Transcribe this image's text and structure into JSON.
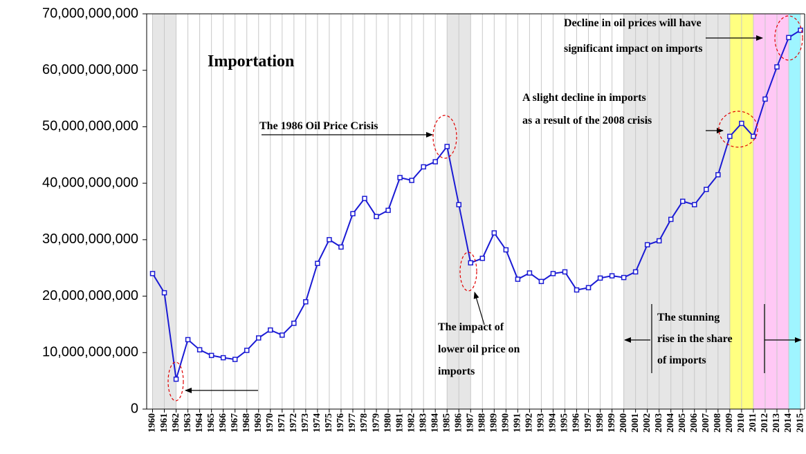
{
  "chart_data": {
    "type": "line",
    "title": "Importation",
    "x": [
      1960,
      1961,
      1962,
      1963,
      1964,
      1965,
      1966,
      1967,
      1968,
      1969,
      1970,
      1971,
      1972,
      1973,
      1974,
      1975,
      1976,
      1977,
      1978,
      1979,
      1980,
      1981,
      1982,
      1983,
      1984,
      1985,
      1986,
      1987,
      1988,
      1989,
      1990,
      1991,
      1992,
      1993,
      1994,
      1995,
      1996,
      1997,
      1998,
      1999,
      2000,
      2001,
      2002,
      2003,
      2004,
      2005,
      2006,
      2007,
      2008,
      2009,
      2010,
      2011,
      2012,
      2013,
      2014,
      2015
    ],
    "series": [
      {
        "color": "#1a1ad4",
        "values": [
          24000000000,
          20600000000,
          5300000000,
          12300000000,
          10500000000,
          9500000000,
          9100000000,
          8800000000,
          10400000000,
          12600000000,
          14000000000,
          13100000000,
          15200000000,
          19000000000,
          25800000000,
          30000000000,
          28700000000,
          34600000000,
          37300000000,
          34100000000,
          35200000000,
          41000000000,
          40500000000,
          42900000000,
          43800000000,
          46500000000,
          36200000000,
          25900000000,
          26700000000,
          31200000000,
          28200000000,
          23000000000,
          24100000000,
          22600000000,
          24000000000,
          24300000000,
          21100000000,
          21500000000,
          23200000000,
          23600000000,
          23300000000,
          24300000000,
          29100000000,
          29800000000,
          33600000000,
          36800000000,
          36200000000,
          38900000000,
          41500000000,
          48300000000,
          50600000000,
          48300000000,
          54900000000,
          60600000000,
          65800000000,
          67100000000
        ]
      }
    ],
    "xlim": [
      1959.5,
      2015.35
    ],
    "ylim": [
      0,
      70000000000
    ],
    "yticks": [
      0,
      {
        "value": 10000000000,
        "label": "10,000,000,000"
      },
      {
        "value": 20000000000,
        "label": "20,000,000,000"
      },
      {
        "value": 30000000000,
        "label": "30,000,000,000"
      },
      {
        "value": 40000000000,
        "label": "40,000,000,000"
      },
      {
        "value": 50000000000,
        "label": "50,000,000,000"
      },
      {
        "value": 60000000000,
        "label": "60,000,000,000"
      },
      {
        "value": 70000000000,
        "label": "70,000,000,000"
      }
    ],
    "grid": true,
    "shaded_regions": [
      {
        "start": 1960,
        "end": 1962,
        "color": "#e6e6e6"
      },
      {
        "start": 1985,
        "end": 1987,
        "color": "#e6e6e6"
      },
      {
        "start": 2000,
        "end": 2009,
        "color": "#e6e6e6"
      },
      {
        "start": 2009,
        "end": 2011,
        "color": "#ffff80"
      },
      {
        "start": 2011,
        "end": 2014,
        "color": "#ffc8f5"
      },
      {
        "start": 2014,
        "end": 2015,
        "color": "#9ff5ff"
      }
    ],
    "annotations": [
      [
        "The 1986 Oil Price Crisis"
      ],
      [
        "The impact of",
        "lower oil price on",
        "imports"
      ],
      [
        "A slight decline  in imports",
        "as a result of the 2008 crisis"
      ],
      [
        "Decline in oil prices will have",
        "significant impact on imports"
      ],
      [
        "The stunning",
        "rise in the share",
        "of  imports"
      ]
    ]
  }
}
